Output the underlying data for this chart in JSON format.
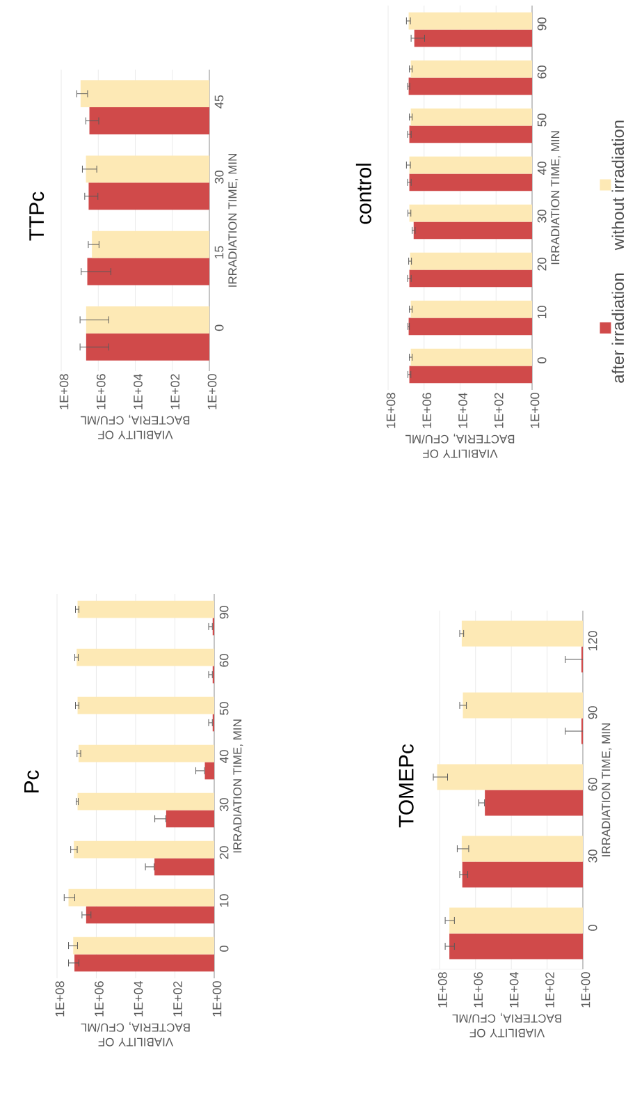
{
  "chart_data": [
    {
      "type": "bar",
      "orientation": "horizontal",
      "title": "TTPc",
      "ylabel": "IRRADIATION TIME, MIN",
      "xlabel": "VIABILITY OF BACTERIA, CFU/ML",
      "log": "x",
      "grid": "x",
      "categories": [
        "45",
        "30",
        "15",
        "0"
      ],
      "xlim": [
        100000000,
        1
      ],
      "xticks": [
        {
          "value": 100000000,
          "label": "1E+08"
        },
        {
          "value": 1000000,
          "label": "1E+06"
        },
        {
          "value": 10000,
          "label": "1E+04"
        },
        {
          "value": 100,
          "label": "1E+02"
        },
        {
          "value": 1,
          "label": "1E+00"
        }
      ],
      "series": [
        {
          "color": "#d04a4a",
          "values": [
            3000000,
            3300000,
            3900000,
            4500000
          ],
          "errors": [
            [
              900000,
              4900000
            ],
            [
              1000000,
              5600000
            ],
            [
              200000,
              8700000
            ],
            [
              260000,
              10000000
            ]
          ]
        },
        {
          "color": "#fde9b5",
          "values": [
            9000000,
            4600000,
            2200000,
            4500000
          ],
          "errors": [
            [
              3600000,
              15000000
            ],
            [
              1150000,
              7500000
            ],
            [
              870000,
              3600000
            ],
            [
              260000,
              10000000
            ]
          ]
        }
      ]
    },
    {
      "type": "bar",
      "orientation": "horizontal",
      "title": "control",
      "ylabel": "IRRADIATION TIME, MIN",
      "xlabel": "VIABILITY OF BACTERIA, CFU/ML",
      "log": "x",
      "grid": "x",
      "legend": "right",
      "categories": [
        "90",
        "60",
        "50",
        "40",
        "30",
        "20",
        "10",
        "0"
      ],
      "xlim": [
        100000000,
        1
      ],
      "xticks": [
        {
          "value": 100000000,
          "label": "1E+08"
        },
        {
          "value": 1000000,
          "label": "1E+06"
        },
        {
          "value": 10000,
          "label": "1E+04"
        },
        {
          "value": 100,
          "label": "1E+02"
        },
        {
          "value": 1,
          "label": "1E+00"
        }
      ],
      "series": [
        {
          "name": "after irradiation",
          "color": "#d04a4a",
          "values": [
            3500000,
            7200000,
            6600000,
            6600000,
            3800000,
            6600000,
            7200000,
            6600000
          ],
          "errors": [
            [
              900000,
              5500000
            ],
            [
              6000000,
              8700000
            ],
            [
              5000000,
              8700000
            ],
            [
              5000000,
              8700000
            ],
            [
              3000000,
              4800000
            ],
            [
              5000000,
              8700000
            ],
            [
              6300000,
              8300000
            ],
            [
              5200000,
              8300000
            ]
          ]
        },
        {
          "name": "without irradiation",
          "color": "#fde9b5",
          "values": [
            7200000,
            5500000,
            5500000,
            6600000,
            6600000,
            6000000,
            5500000,
            5500000
          ],
          "errors": [
            [
              5500000,
              10000000
            ],
            [
              4400000,
              6900000
            ],
            [
              4400000,
              6900000
            ],
            [
              5500000,
              10000000
            ],
            [
              5200000,
              8300000
            ],
            [
              4800000,
              7500000
            ],
            [
              4400000,
              6900000
            ],
            [
              4400000,
              6900000
            ]
          ]
        }
      ]
    },
    {
      "type": "bar",
      "orientation": "horizontal",
      "title": "Pc",
      "ylabel": "IRRADIATION TIME, MIN",
      "xlabel": "VIABILITY OF BACTERIA, CFU/ML",
      "log": "x",
      "grid": "x",
      "categories": [
        "90",
        "60",
        "50",
        "40",
        "30",
        "20",
        "10",
        "0"
      ],
      "xlim": [
        100000000,
        1
      ],
      "xticks": [
        {
          "value": 100000000,
          "label": "1E+08"
        },
        {
          "value": 1000000,
          "label": "1E+06"
        },
        {
          "value": 10000,
          "label": "1E+04"
        },
        {
          "value": 100,
          "label": "1E+02"
        },
        {
          "value": 1,
          "label": "1E+00"
        }
      ],
      "series": [
        {
          "color": "#d04a4a",
          "values": [
            1.2,
            1.2,
            1.2,
            3,
            280,
            1100,
            3300000,
            13000000
          ],
          "errors": [
            [
              1.2,
              2
            ],
            [
              1.2,
              2
            ],
            [
              1.2,
              2
            ],
            [
              3,
              9
            ],
            [
              280,
              1100
            ],
            [
              1100,
              3300
            ],
            [
              1800000,
              5600000
            ],
            [
              7400000,
              27000000
            ]
          ]
        },
        {
          "color": "#fde9b5",
          "values": [
            9000000,
            10000000,
            9000000,
            8000000,
            9000000,
            14000000,
            26000000,
            15000000
          ],
          "errors": [
            [
              7400000,
              12000000
            ],
            [
              8000000,
              13000000
            ],
            [
              7400000,
              12000000
            ],
            [
              6000000,
              10000000
            ],
            [
              8000000,
              11000000
            ],
            [
              9000000,
              21000000
            ],
            [
              12000000,
              45000000
            ],
            [
              8700000,
              27000000
            ]
          ]
        }
      ]
    },
    {
      "type": "bar",
      "orientation": "horizontal",
      "title": "TOMEPc",
      "ylabel": "IRRADIATION TIME, MIN",
      "xlabel": "VIABILITY OF BACTERIA, CFU/ML",
      "log": "x",
      "grid": "x",
      "categories": [
        "120",
        "90",
        "60",
        "30",
        "0"
      ],
      "xlim": [
        300000000,
        1
      ],
      "xticks": [
        {
          "value": 100000000,
          "label": "1E+08"
        },
        {
          "value": 1000000,
          "label": "1E+06"
        },
        {
          "value": 10000,
          "label": "1E+04"
        },
        {
          "value": 100,
          "label": "1E+02"
        },
        {
          "value": 1,
          "label": "1E+00"
        }
      ],
      "series": [
        {
          "color": "#d04a4a",
          "values": [
            1.2,
            1.2,
            300000,
            5500000,
            29000000
          ],
          "errors": [
            [
              1,
              10
            ],
            [
              1,
              10
            ],
            [
              300000,
              680000
            ],
            [
              2600000,
              8000000
            ],
            [
              14500000,
              52000000
            ]
          ]
        },
        {
          "color": "#fde9b5",
          "values": [
            5900000,
            5100000,
            140000000,
            5900000,
            29000000
          ],
          "errors": [
            [
              4400000,
              8000000
            ],
            [
              3100000,
              8000000
            ],
            [
              35000000,
              240000000
            ],
            [
              2300000,
              11000000
            ],
            [
              14500000,
              52000000
            ]
          ]
        }
      ]
    }
  ]
}
